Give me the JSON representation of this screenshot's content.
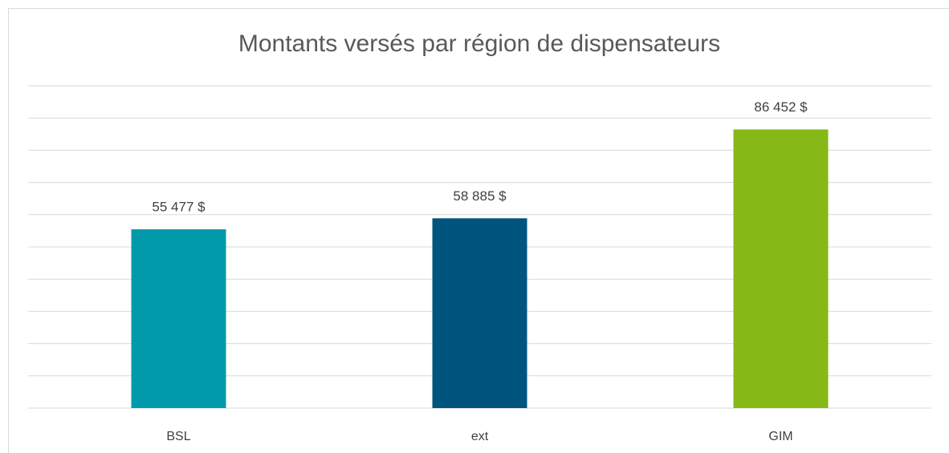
{
  "chart_data": {
    "type": "bar",
    "title": "Montants versés par région de dispensateurs",
    "categories": [
      "BSL",
      "ext",
      "GIM"
    ],
    "values": [
      55477,
      58885,
      86452
    ],
    "value_labels": [
      "55 477  $",
      "58 885  $",
      "86 452  $"
    ],
    "colors": [
      "#009aaa",
      "#00547e",
      "#86b817"
    ],
    "ylim": [
      0,
      100000
    ],
    "yticks": [
      0,
      10000,
      20000,
      30000,
      40000,
      50000,
      60000,
      70000,
      80000,
      90000,
      100000
    ],
    "grid": true
  }
}
